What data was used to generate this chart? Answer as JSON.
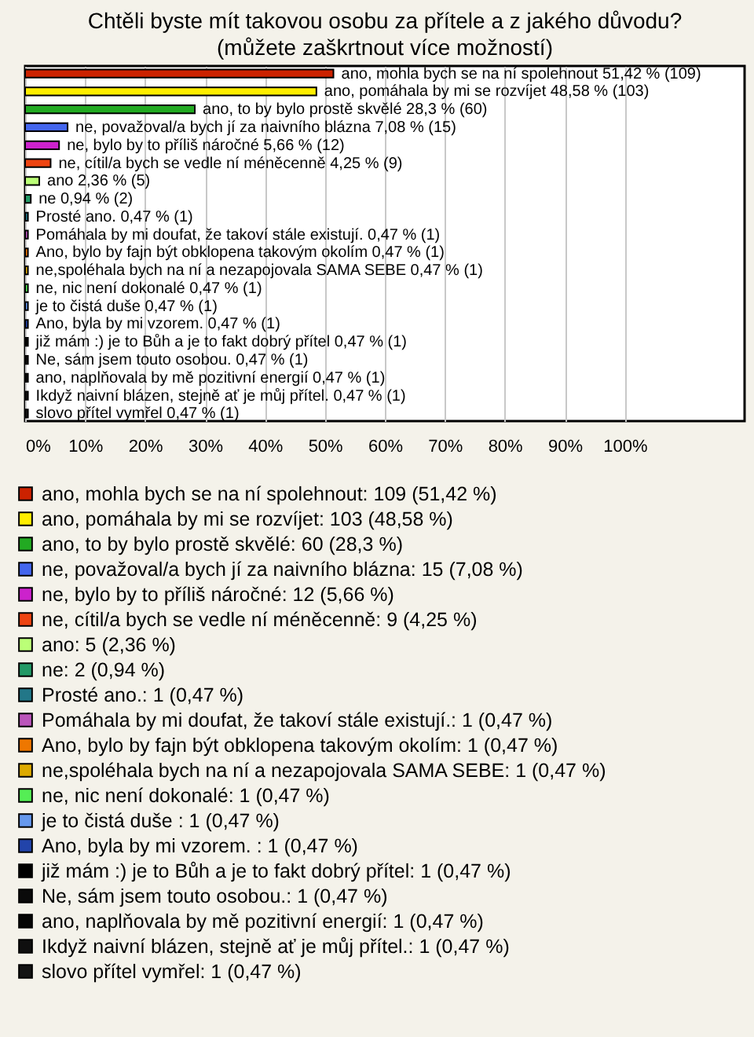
{
  "chart_data": {
    "type": "bar",
    "orientation": "horizontal",
    "title": "Chtěli byste mít takovou osobu za přítele a z jakého důvodu? (můžete zaškrtnout více možností)",
    "categories": [
      null,
      null,
      null,
      null,
      null,
      null,
      null,
      null,
      null,
      null,
      null,
      null,
      null,
      null,
      null,
      null,
      null,
      null,
      null,
      null
    ],
    "xlim": [
      0,
      120
    ],
    "xticks": [
      {
        "value": 0,
        "label": "0%"
      },
      {
        "value": 10,
        "label": "10%"
      },
      {
        "value": 20,
        "label": "20%"
      },
      {
        "value": 30,
        "label": "30%"
      },
      {
        "value": 40,
        "label": "40%"
      },
      {
        "value": 50,
        "label": "50%"
      },
      {
        "value": 60,
        "label": "60%"
      },
      {
        "value": 70,
        "label": "70%"
      },
      {
        "value": 80,
        "label": "80%"
      },
      {
        "value": 90,
        "label": "90%"
      },
      {
        "value": 100,
        "label": "100%"
      }
    ],
    "grid": "x",
    "legend": "bottom",
    "series": [
      {
        "name": "ano, mohla bych se na ní spolehnout: 109 (51,42 %)",
        "color": "#cc2200",
        "values": [
          51.42,
          null,
          null,
          null,
          null,
          null,
          null,
          null,
          null,
          null,
          null,
          null,
          null,
          null,
          null,
          null,
          null,
          null,
          null,
          null
        ],
        "value_labels": [
          "ano, mohla bych se na ní spolehnout 51,42 % (109)",
          null,
          null,
          null,
          null,
          null,
          null,
          null,
          null,
          null,
          null,
          null,
          null,
          null,
          null,
          null,
          null,
          null,
          null,
          null
        ]
      },
      {
        "name": "ano, pomáhala by mi se rozvíjet: 103 (48,58 %)",
        "color": "#ffee00",
        "values": [
          null,
          48.58,
          null,
          null,
          null,
          null,
          null,
          null,
          null,
          null,
          null,
          null,
          null,
          null,
          null,
          null,
          null,
          null,
          null,
          null
        ],
        "value_labels": [
          null,
          "ano, pomáhala by mi se rozvíjet 48,58 % (103)",
          null,
          null,
          null,
          null,
          null,
          null,
          null,
          null,
          null,
          null,
          null,
          null,
          null,
          null,
          null,
          null,
          null,
          null
        ]
      },
      {
        "name": "ano, to by bylo prostě skvělé: 60 (28,3 %)",
        "color": "#22aa22",
        "values": [
          null,
          null,
          28.3,
          null,
          null,
          null,
          null,
          null,
          null,
          null,
          null,
          null,
          null,
          null,
          null,
          null,
          null,
          null,
          null,
          null
        ],
        "value_labels": [
          null,
          null,
          "ano, to by bylo prostě skvělé 28,3 % (60)",
          null,
          null,
          null,
          null,
          null,
          null,
          null,
          null,
          null,
          null,
          null,
          null,
          null,
          null,
          null,
          null,
          null
        ]
      },
      {
        "name": "ne, považoval/a bych jí za naivního blázna: 15 (7,08 %)",
        "color": "#4466ee",
        "values": [
          null,
          null,
          null,
          7.08,
          null,
          null,
          null,
          null,
          null,
          null,
          null,
          null,
          null,
          null,
          null,
          null,
          null,
          null,
          null,
          null
        ],
        "value_labels": [
          null,
          null,
          null,
          "ne, považoval/a bych jí za naivního blázna 7,08 % (15)",
          null,
          null,
          null,
          null,
          null,
          null,
          null,
          null,
          null,
          null,
          null,
          null,
          null,
          null,
          null,
          null
        ]
      },
      {
        "name": "ne, bylo by to příliš náročné: 12 (5,66 %)",
        "color": "#cc22cc",
        "values": [
          null,
          null,
          null,
          null,
          5.66,
          null,
          null,
          null,
          null,
          null,
          null,
          null,
          null,
          null,
          null,
          null,
          null,
          null,
          null,
          null
        ],
        "value_labels": [
          null,
          null,
          null,
          null,
          "ne, bylo by to příliš náročné 5,66 % (12)",
          null,
          null,
          null,
          null,
          null,
          null,
          null,
          null,
          null,
          null,
          null,
          null,
          null,
          null,
          null
        ]
      },
      {
        "name": "ne, cítil/a bych se vedle ní méněcenně: 9 (4,25 %)",
        "color": "#ee4411",
        "values": [
          null,
          null,
          null,
          null,
          null,
          4.25,
          null,
          null,
          null,
          null,
          null,
          null,
          null,
          null,
          null,
          null,
          null,
          null,
          null,
          null
        ],
        "value_labels": [
          null,
          null,
          null,
          null,
          null,
          "ne, cítil/a bych se vedle ní méněcenně 4,25 % (9)",
          null,
          null,
          null,
          null,
          null,
          null,
          null,
          null,
          null,
          null,
          null,
          null,
          null,
          null
        ]
      },
      {
        "name": "ano: 5 (2,36 %)",
        "color": "#bbff77",
        "values": [
          null,
          null,
          null,
          null,
          null,
          null,
          2.36,
          null,
          null,
          null,
          null,
          null,
          null,
          null,
          null,
          null,
          null,
          null,
          null,
          null
        ],
        "value_labels": [
          null,
          null,
          null,
          null,
          null,
          null,
          "ano 2,36 % (5)",
          null,
          null,
          null,
          null,
          null,
          null,
          null,
          null,
          null,
          null,
          null,
          null,
          null
        ]
      },
      {
        "name": "ne: 2 (0,94 %)",
        "color": "#229966",
        "values": [
          null,
          null,
          null,
          null,
          null,
          null,
          null,
          0.94,
          null,
          null,
          null,
          null,
          null,
          null,
          null,
          null,
          null,
          null,
          null,
          null
        ],
        "value_labels": [
          null,
          null,
          null,
          null,
          null,
          null,
          null,
          "ne 0,94 % (2)",
          null,
          null,
          null,
          null,
          null,
          null,
          null,
          null,
          null,
          null,
          null,
          null
        ]
      },
      {
        "name": "Prosté ano.: 1 (0,47 %)",
        "color": "#227788",
        "values": [
          null,
          null,
          null,
          null,
          null,
          null,
          null,
          null,
          0.47,
          null,
          null,
          null,
          null,
          null,
          null,
          null,
          null,
          null,
          null,
          null
        ],
        "value_labels": [
          null,
          null,
          null,
          null,
          null,
          null,
          null,
          null,
          "Prosté ano. 0,47 % (1)",
          null,
          null,
          null,
          null,
          null,
          null,
          null,
          null,
          null,
          null,
          null
        ]
      },
      {
        "name": "Pomáhala by mi doufat, že takoví stále existují.: 1 (0,47 %)",
        "color": "#bb55bb",
        "values": [
          null,
          null,
          null,
          null,
          null,
          null,
          null,
          null,
          null,
          0.47,
          null,
          null,
          null,
          null,
          null,
          null,
          null,
          null,
          null,
          null
        ],
        "value_labels": [
          null,
          null,
          null,
          null,
          null,
          null,
          null,
          null,
          null,
          "Pomáhala by mi doufat, že takoví stále existují. 0,47 % (1)",
          null,
          null,
          null,
          null,
          null,
          null,
          null,
          null,
          null,
          null
        ]
      },
      {
        "name": "Ano, bylo by fajn být obklopena takovým okolím: 1 (0,47 %)",
        "color": "#ee7700",
        "values": [
          null,
          null,
          null,
          null,
          null,
          null,
          null,
          null,
          null,
          null,
          0.47,
          null,
          null,
          null,
          null,
          null,
          null,
          null,
          null,
          null
        ],
        "value_labels": [
          null,
          null,
          null,
          null,
          null,
          null,
          null,
          null,
          null,
          null,
          "Ano, bylo by fajn být obklopena takovým okolím 0,47 % (1)",
          null,
          null,
          null,
          null,
          null,
          null,
          null,
          null,
          null
        ]
      },
      {
        "name": "ne,spoléhala bych na ní a nezapojovala SAMA SEBE: 1 (0,47 %)",
        "color": "#ddaa00",
        "values": [
          null,
          null,
          null,
          null,
          null,
          null,
          null,
          null,
          null,
          null,
          null,
          0.47,
          null,
          null,
          null,
          null,
          null,
          null,
          null,
          null
        ],
        "value_labels": [
          null,
          null,
          null,
          null,
          null,
          null,
          null,
          null,
          null,
          null,
          null,
          "ne,spoléhala bych na ní a nezapojovala SAMA SEBE 0,47 % (1)",
          null,
          null,
          null,
          null,
          null,
          null,
          null,
          null
        ]
      },
      {
        "name": "ne, nic není dokonalé: 1 (0,47 %)",
        "color": "#55ee55",
        "values": [
          null,
          null,
          null,
          null,
          null,
          null,
          null,
          null,
          null,
          null,
          null,
          null,
          0.47,
          null,
          null,
          null,
          null,
          null,
          null,
          null
        ],
        "value_labels": [
          null,
          null,
          null,
          null,
          null,
          null,
          null,
          null,
          null,
          null,
          null,
          null,
          "ne, nic není dokonalé 0,47 % (1)",
          null,
          null,
          null,
          null,
          null,
          null,
          null
        ]
      },
      {
        "name": "je to čistá duše : 1 (0,47 %)",
        "color": "#6699ee",
        "values": [
          null,
          null,
          null,
          null,
          null,
          null,
          null,
          null,
          null,
          null,
          null,
          null,
          null,
          0.47,
          null,
          null,
          null,
          null,
          null,
          null
        ],
        "value_labels": [
          null,
          null,
          null,
          null,
          null,
          null,
          null,
          null,
          null,
          null,
          null,
          null,
          null,
          "je to čistá duše 0,47 % (1)",
          null,
          null,
          null,
          null,
          null,
          null
        ]
      },
      {
        "name": "Ano, byla by mi vzorem. : 1 (0,47 %)",
        "color": "#2244aa",
        "values": [
          null,
          null,
          null,
          null,
          null,
          null,
          null,
          null,
          null,
          null,
          null,
          null,
          null,
          null,
          0.47,
          null,
          null,
          null,
          null,
          null
        ],
        "value_labels": [
          null,
          null,
          null,
          null,
          null,
          null,
          null,
          null,
          null,
          null,
          null,
          null,
          null,
          null,
          "Ano, byla by mi vzorem. 0,47 % (1)",
          null,
          null,
          null,
          null,
          null
        ]
      },
      {
        "name": "již mám :) je to Bůh a je to fakt dobrý přítel: 1 (0,47 %)",
        "color": "#000000",
        "values": [
          null,
          null,
          null,
          null,
          null,
          null,
          null,
          null,
          null,
          null,
          null,
          null,
          null,
          null,
          null,
          0.47,
          null,
          null,
          null,
          null
        ],
        "value_labels": [
          null,
          null,
          null,
          null,
          null,
          null,
          null,
          null,
          null,
          null,
          null,
          null,
          null,
          null,
          null,
          "již mám :) je to Bůh a je to fakt dobrý přítel 0,47 % (1)",
          null,
          null,
          null,
          null
        ]
      },
      {
        "name": "Ne, sám jsem touto osobou.: 1 (0,47 %)",
        "color": "#0a0a0a",
        "values": [
          null,
          null,
          null,
          null,
          null,
          null,
          null,
          null,
          null,
          null,
          null,
          null,
          null,
          null,
          null,
          null,
          0.47,
          null,
          null,
          null
        ],
        "value_labels": [
          null,
          null,
          null,
          null,
          null,
          null,
          null,
          null,
          null,
          null,
          null,
          null,
          null,
          null,
          null,
          null,
          "Ne, sám jsem touto osobou. 0,47 % (1)",
          null,
          null,
          null
        ]
      },
      {
        "name": "ano, naplňovala by mě pozitivní energií: 1 (0,47 %)",
        "color": "#050505",
        "values": [
          null,
          null,
          null,
          null,
          null,
          null,
          null,
          null,
          null,
          null,
          null,
          null,
          null,
          null,
          null,
          null,
          null,
          0.47,
          null,
          null
        ],
        "value_labels": [
          null,
          null,
          null,
          null,
          null,
          null,
          null,
          null,
          null,
          null,
          null,
          null,
          null,
          null,
          null,
          null,
          null,
          "ano, naplňovala by mě pozitivní energií 0,47 % (1)",
          null,
          null
        ]
      },
      {
        "name": "Ikdyž naivní blázen, stejně ať je můj přítel.: 1 (0,47 %)",
        "color": "#0f0f0f",
        "values": [
          null,
          null,
          null,
          null,
          null,
          null,
          null,
          null,
          null,
          null,
          null,
          null,
          null,
          null,
          null,
          null,
          null,
          null,
          0.47,
          null
        ],
        "value_labels": [
          null,
          null,
          null,
          null,
          null,
          null,
          null,
          null,
          null,
          null,
          null,
          null,
          null,
          null,
          null,
          null,
          null,
          null,
          "Ikdyž naivní blázen, stejně ať je můj přítel. 0,47 % (1)",
          null
        ]
      },
      {
        "name": "slovo přítel vymřel: 1 (0,47 %)",
        "color": "#141414",
        "values": [
          null,
          null,
          null,
          null,
          null,
          null,
          null,
          null,
          null,
          null,
          null,
          null,
          null,
          null,
          null,
          null,
          null,
          null,
          null,
          0.47
        ],
        "value_labels": [
          null,
          null,
          null,
          null,
          null,
          null,
          null,
          null,
          null,
          null,
          null,
          null,
          null,
          null,
          null,
          null,
          null,
          null,
          null,
          "slovo přítel vymřel 0,47 % (1)"
        ]
      }
    ]
  }
}
